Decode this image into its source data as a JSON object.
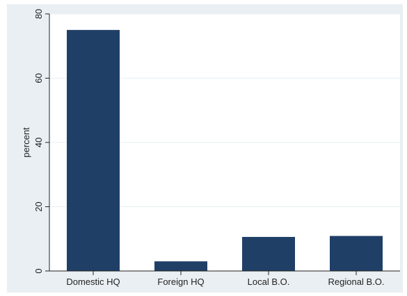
{
  "chart_data": {
    "type": "bar",
    "categories": [
      "Domestic HQ",
      "Foreign HQ",
      "Local B.O.",
      "Regional B.O."
    ],
    "values": [
      75,
      3,
      10.6,
      10.9
    ],
    "ylabel": "percent",
    "xlabel": "",
    "ylim": [
      0,
      80
    ],
    "yticks": [
      0,
      20,
      40,
      60,
      80
    ],
    "grid": true,
    "colors": {
      "bar": "#1f3f66",
      "background": "#e9eff3",
      "plot_area": "#ffffff",
      "grid": "#e9eef2",
      "axis": "#222222"
    }
  }
}
